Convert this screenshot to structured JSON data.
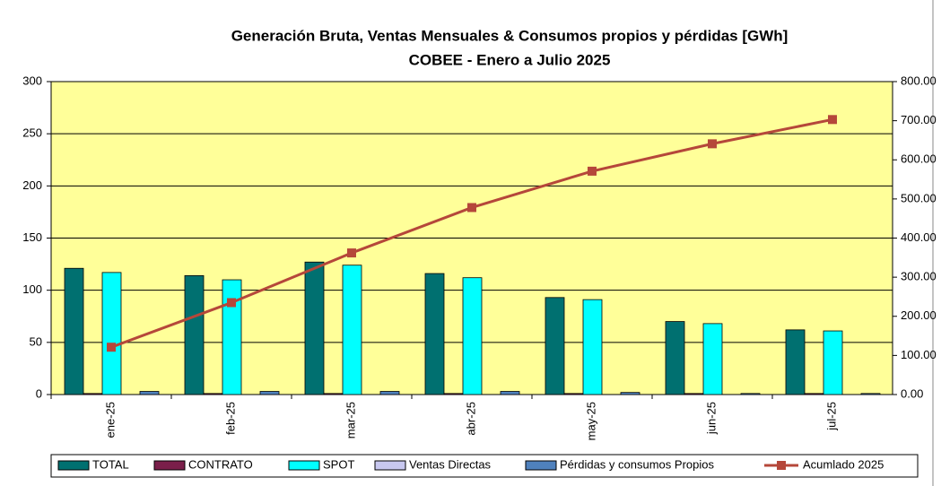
{
  "chart_data": {
    "type": "bar",
    "title": "Generación Bruta, Ventas Mensuales  & Consumos propios y pérdidas  [GWh]",
    "subtitle": "COBEE - Enero a Julio 2025",
    "categories": [
      "ene-25",
      "feb-25",
      "mar-25",
      "abr-25",
      "may-25",
      "jun-25",
      "jul-25"
    ],
    "series": [
      {
        "name": "TOTAL",
        "color": "#007070",
        "values": [
          121,
          114,
          127,
          116,
          93,
          70,
          62
        ]
      },
      {
        "name": "CONTRATO",
        "color": "#7a1f4a",
        "values": [
          1,
          1,
          1,
          1,
          1,
          1,
          1
        ]
      },
      {
        "name": "SPOT",
        "color": "#00ffff",
        "values": [
          117,
          110,
          124,
          112,
          91,
          68,
          61
        ]
      },
      {
        "name": "Ventas Directas",
        "color": "#c8c8f0",
        "values": [
          0,
          0,
          0,
          0,
          0,
          0,
          0
        ]
      },
      {
        "name": "Pérdidas y consumos Propios",
        "color": "#4f81bd",
        "values": [
          3,
          3,
          3,
          3,
          2,
          1,
          1
        ]
      },
      {
        "name": "Acumlado 2025",
        "color": "#b5473a",
        "type": "line",
        "axis": "y2",
        "values": [
          121,
          235,
          362,
          478,
          571,
          641,
          703
        ]
      }
    ],
    "ylim": [
      0,
      300
    ],
    "yticks": [
      0,
      50,
      100,
      150,
      200,
      250,
      300
    ],
    "y2lim": [
      0,
      800
    ],
    "y2ticks": [
      {
        "value": 0,
        "label": "0.00"
      },
      {
        "value": 100,
        "label": "100.00"
      },
      {
        "value": 200,
        "label": "200.00"
      },
      {
        "value": 300,
        "label": "300.00"
      },
      {
        "value": 400,
        "label": "400.00"
      },
      {
        "value": 500,
        "label": "500.00"
      },
      {
        "value": 600,
        "label": "600.00"
      },
      {
        "value": 700,
        "label": "700.00"
      },
      {
        "value": 800,
        "label": "800.00"
      }
    ],
    "plot_background": "#ffff99",
    "legend": "bottom"
  }
}
